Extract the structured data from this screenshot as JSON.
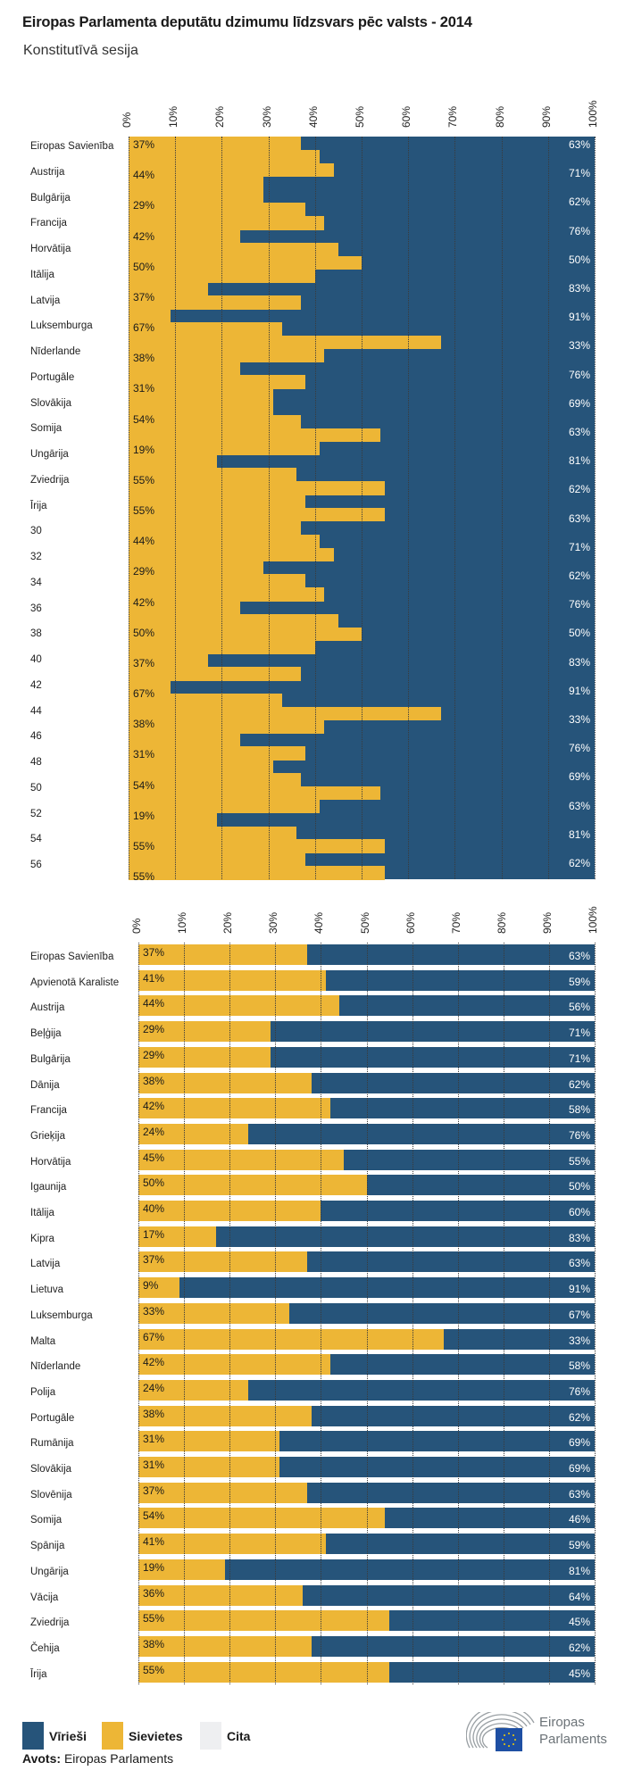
{
  "title": "Eiropas Parlamenta deputātu dzimumu līdzsvars pēc valsts - 2014",
  "subtitle": "Konstitutīvā sesija",
  "colors": {
    "male": "#26547a",
    "female": "#edb636",
    "other": "#eeeff1"
  },
  "chart_data": [
    {
      "type": "area",
      "stacked": true,
      "xlim": [
        0,
        100
      ],
      "x_ticks": [
        "0%",
        "10%",
        "20%",
        "30%",
        "40%",
        "50%",
        "60%",
        "70%",
        "80%",
        "90%",
        "100%"
      ],
      "grid": true,
      "row_labels": [
        "Eiropas Savienība",
        "Austrija",
        "Bulgārija",
        "Francija",
        "Horvātija",
        "Itālija",
        "Latvija",
        "Luksemburga",
        "Nīderlande",
        "Portugāle",
        "Slovākija",
        "Somija",
        "Ungārija",
        "Zviedrija",
        "Īrija",
        "30",
        "32",
        "34",
        "36",
        "38",
        "40",
        "42",
        "44",
        "46",
        "48",
        "50",
        "52",
        "54",
        "56"
      ],
      "female_steps": [
        37,
        41,
        44,
        29,
        29,
        38,
        42,
        24,
        45,
        50,
        40,
        17,
        37,
        9,
        33,
        67,
        42,
        24,
        38,
        31,
        31,
        37,
        54,
        41,
        19,
        36,
        55,
        38,
        55,
        37,
        41,
        44,
        29,
        38,
        42,
        24,
        45,
        50,
        40,
        17,
        37,
        9,
        33,
        67,
        42,
        24,
        38,
        31,
        37,
        54,
        41,
        19,
        36,
        55,
        38,
        55
      ],
      "female_labels": [
        "37%",
        "44%",
        "29%",
        "42%",
        "50%",
        "37%",
        "67%",
        "38%",
        "31%",
        "54%",
        "19%",
        "55%",
        "55%",
        "44%",
        "29%",
        "42%",
        "50%",
        "37%",
        "67%",
        "38%",
        "31%",
        "54%",
        "19%",
        "55%",
        "55%"
      ],
      "male_labels": [
        "63%",
        "71%",
        "62%",
        "76%",
        "50%",
        "83%",
        "91%",
        "33%",
        "76%",
        "69%",
        "63%",
        "81%",
        "62%",
        "63%",
        "71%",
        "62%",
        "76%",
        "50%",
        "83%",
        "91%",
        "33%",
        "76%",
        "69%",
        "63%",
        "81%",
        "62%"
      ]
    },
    {
      "type": "bar",
      "orientation": "horizontal",
      "stacked": true,
      "xlim": [
        0,
        100
      ],
      "x_ticks": [
        "0%",
        "10%",
        "20%",
        "30%",
        "40%",
        "50%",
        "60%",
        "70%",
        "80%",
        "90%",
        "100%"
      ],
      "grid": true,
      "categories": [
        "Eiropas Savienība",
        "Apvienotā Karaliste",
        "Austrija",
        "Beļģija",
        "Bulgārija",
        "Dānija",
        "Francija",
        "Grieķija",
        "Horvātija",
        "Igaunija",
        "Itālija",
        "Kipra",
        "Latvija",
        "Lietuva",
        "Luksemburga",
        "Malta",
        "Nīderlande",
        "Polija",
        "Portugāle",
        "Rumānija",
        "Slovākija",
        "Slovēnija",
        "Somija",
        "Spānija",
        "Ungārija",
        "Vācija",
        "Zviedrija",
        "Čehija",
        "Īrija"
      ],
      "series": [
        {
          "name": "Sievietes",
          "values": [
            37,
            41,
            44,
            29,
            29,
            38,
            42,
            24,
            45,
            50,
            40,
            17,
            37,
            9,
            33,
            67,
            42,
            24,
            38,
            31,
            31,
            37,
            54,
            41,
            19,
            36,
            55,
            38,
            55
          ]
        },
        {
          "name": "Vīrieši",
          "values": [
            63,
            59,
            56,
            71,
            71,
            62,
            58,
            76,
            55,
            50,
            60,
            83,
            63,
            91,
            67,
            33,
            58,
            76,
            62,
            69,
            69,
            63,
            46,
            59,
            81,
            64,
            45,
            62,
            45
          ]
        }
      ]
    }
  ],
  "legend": {
    "placement": "bottom-left",
    "items": [
      {
        "label": "Vīrieši",
        "color": "#26547a"
      },
      {
        "label": "Sievietes",
        "color": "#edb636"
      },
      {
        "label": "Cita",
        "color": "#eeeff1"
      }
    ]
  },
  "source": {
    "label": "Avots:",
    "value": "Eiropas Parlaments"
  },
  "logo": {
    "text_line1": "Eiropas",
    "text_line2": "Parlaments"
  }
}
